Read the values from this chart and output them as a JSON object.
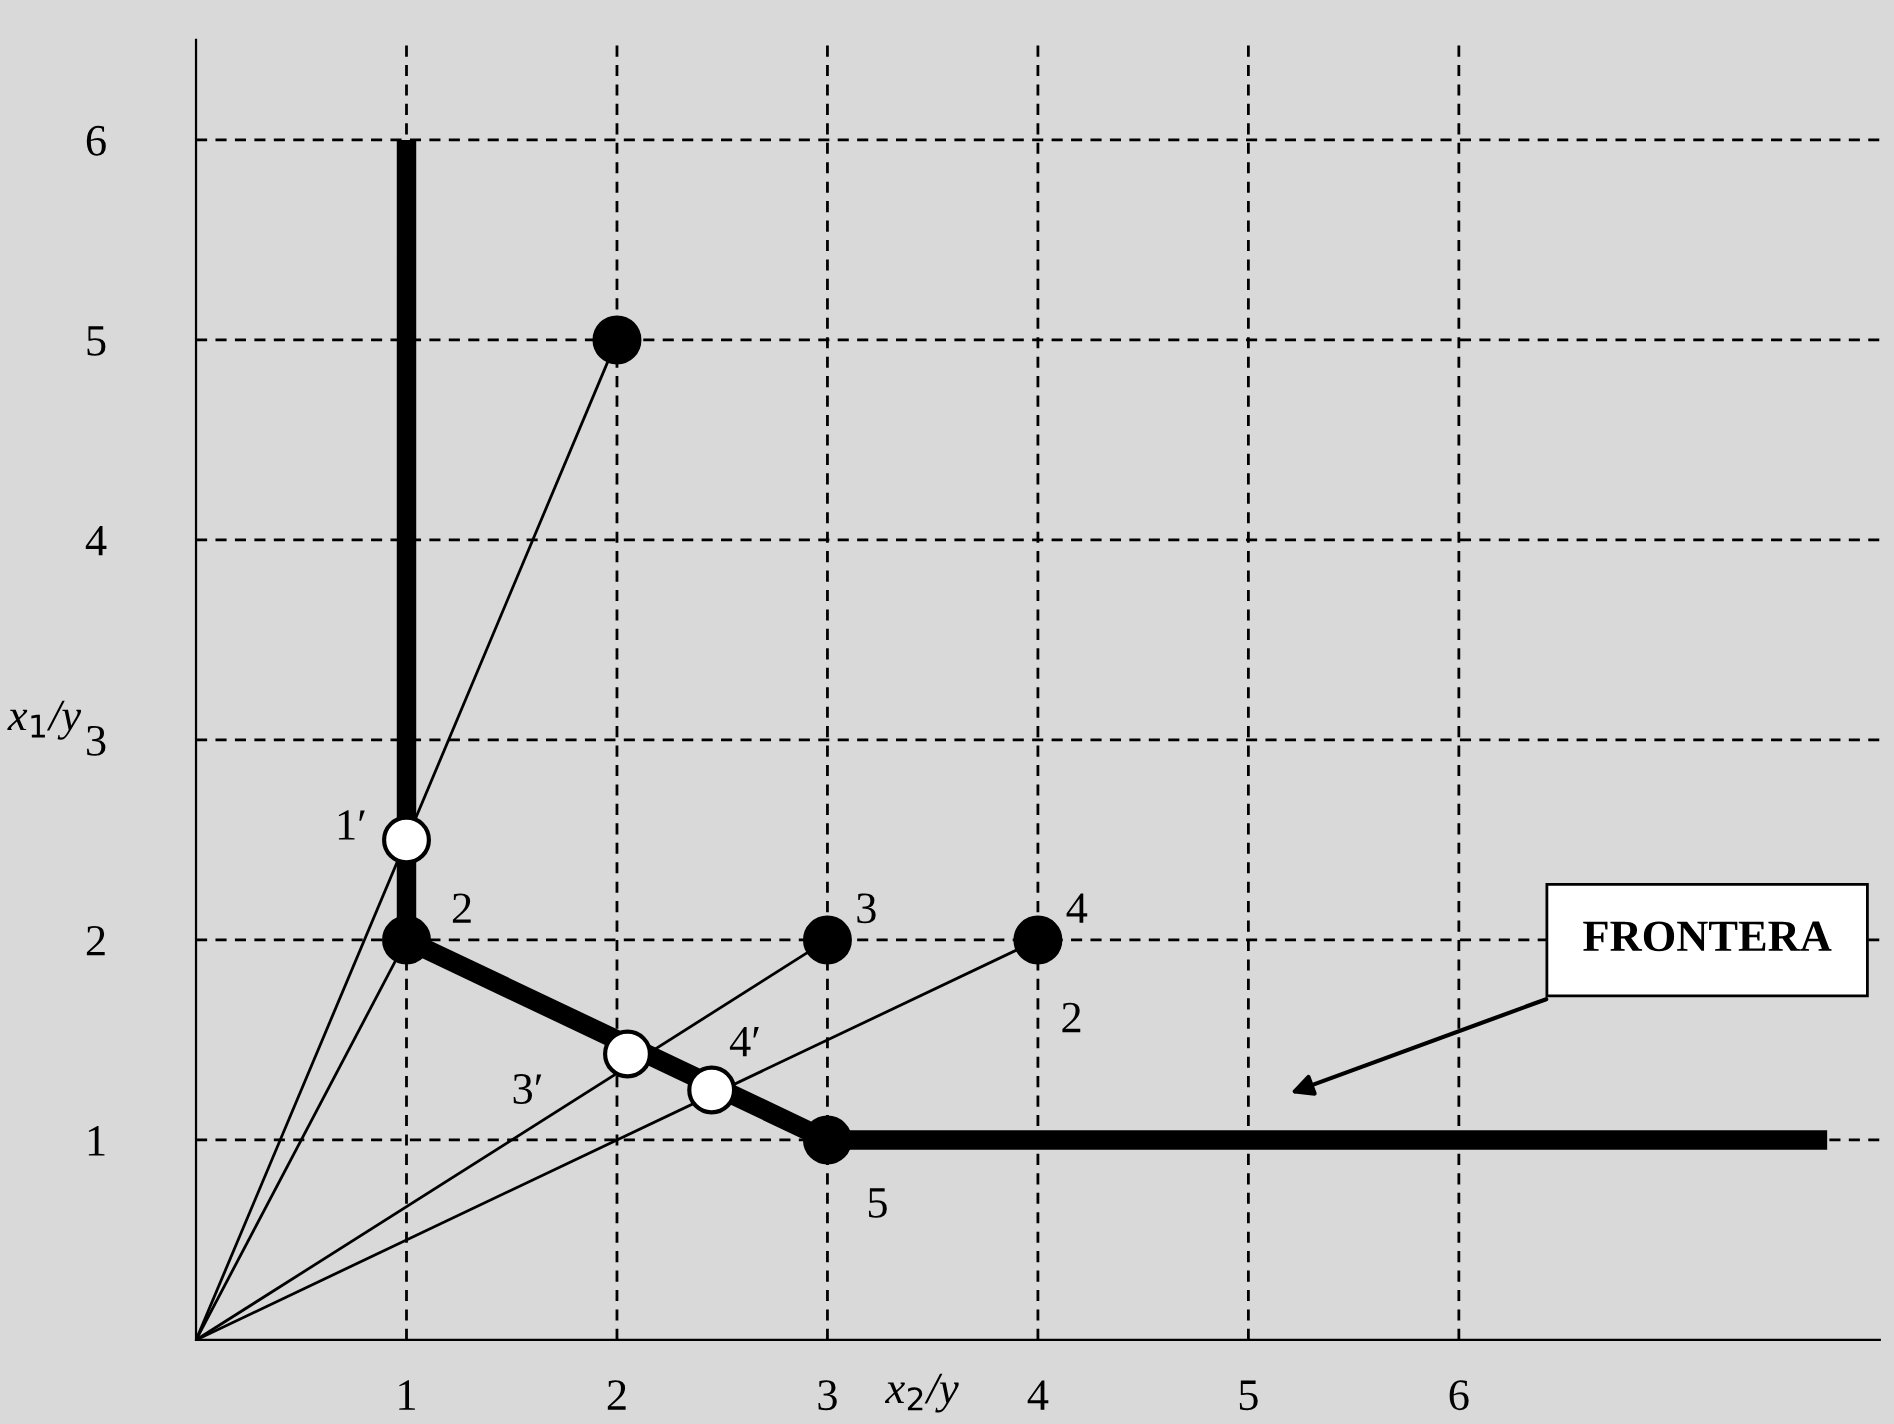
{
  "chart_data": {
    "type": "line",
    "xlabel": "x$_{2}$/y",
    "ylabel": "x$_{1}$/y",
    "xlim": [
      0,
      8
    ],
    "ylim": [
      0,
      6.5
    ],
    "xticks": [
      1,
      2,
      3,
      4,
      5,
      6
    ],
    "yticks": [
      1,
      2,
      3,
      4,
      5,
      6
    ],
    "grid": true,
    "series": [
      {
        "color": "#000000",
        "x": [
          0,
          2
        ],
        "values": [
          0,
          5
        ]
      },
      {
        "color": "#000000",
        "x": [
          0,
          1
        ],
        "values": [
          0,
          2
        ]
      },
      {
        "color": "#000000",
        "x": [
          0,
          3
        ],
        "values": [
          0,
          2
        ]
      },
      {
        "color": "#000000",
        "x": [
          0,
          4
        ],
        "values": [
          0,
          2
        ]
      },
      {
        "color": "#000000",
        "x": [
          1,
          1,
          3,
          7.75
        ],
        "values": [
          6,
          2,
          1,
          1
        ]
      },
      {
        "type": "scatter",
        "color": "#000000",
        "x": [
          2,
          1,
          3,
          4,
          3
        ],
        "values": [
          5,
          2,
          2,
          2,
          1
        ],
        "marker": "circle"
      },
      {
        "type": "scatter",
        "color": "#ffffff",
        "x": [
          1,
          2.05,
          2.45
        ],
        "values": [
          2.5,
          1.43,
          1.25
        ],
        "marker": "circle"
      }
    ],
    "annotations": [
      {
        "text": "1′",
        "x": 1,
        "y": 2.5
      },
      {
        "text": "2",
        "x": 1,
        "y": 2
      },
      {
        "text": "3",
        "x": 3,
        "y": 2
      },
      {
        "text": "4",
        "x": 4,
        "y": 2
      },
      {
        "text": "3′",
        "x": 2.05,
        "y": 1.43
      },
      {
        "text": "4′",
        "x": 2.45,
        "y": 1.25
      },
      {
        "text": "5",
        "x": 3,
        "y": 1
      },
      "2",
      "FRONTERA"
    ]
  }
}
